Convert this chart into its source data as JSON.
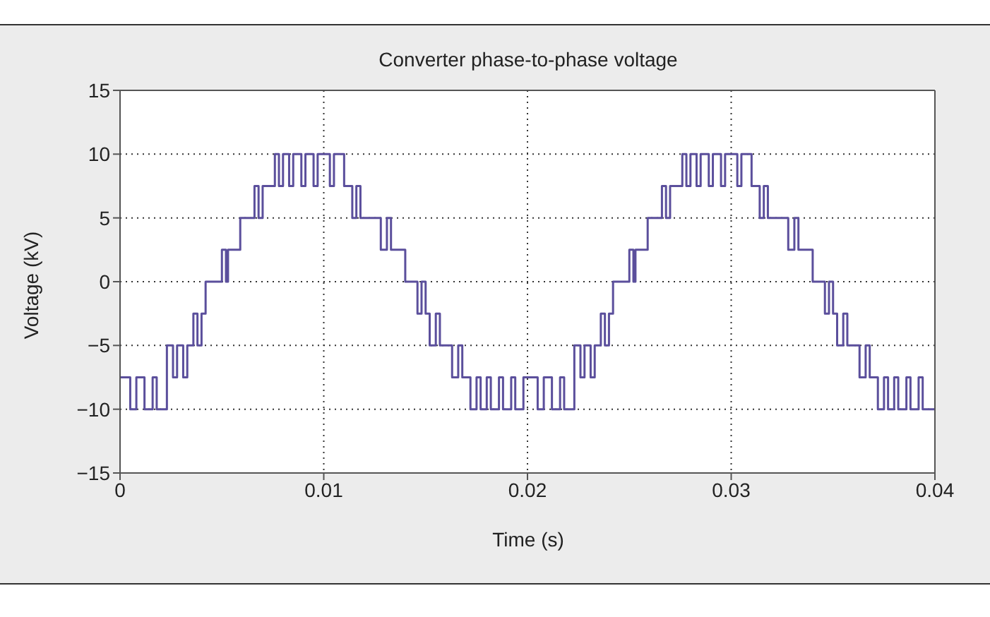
{
  "chart_data": {
    "type": "step",
    "title": "Converter phase-to-phase voltage",
    "xlabel": "Time (s)",
    "ylabel": "Voltage (kV)",
    "x": [
      0,
      0.0005,
      0.0008,
      0.0012,
      0.0016,
      0.0018,
      0.0023,
      0.0026,
      0.0028,
      0.0031,
      0.0033,
      0.0036,
      0.0038,
      0.004,
      0.0042,
      0.005,
      0.0052,
      0.0053,
      0.0059,
      0.0066,
      0.0068,
      0.007,
      0.0076,
      0.0078,
      0.008,
      0.0083,
      0.0085,
      0.0089,
      0.0091,
      0.0095,
      0.0097,
      0.0103,
      0.0105,
      0.011,
      0.0114,
      0.0116,
      0.0118,
      0.0128,
      0.0131,
      0.0133,
      0.014,
      0.0146,
      0.0148,
      0.015,
      0.0152,
      0.0155,
      0.0157,
      0.0163,
      0.0166,
      0.0168,
      0.0172,
      0.0175,
      0.0177,
      0.018,
      0.0182,
      0.0186,
      0.0188,
      0.0192,
      0.0194,
      0.0198,
      0.02,
      0.0205,
      0.0208,
      0.0212,
      0.0216,
      0.0218,
      0.0223,
      0.0226,
      0.0228,
      0.0231,
      0.0233,
      0.0236,
      0.0238,
      0.024,
      0.0242,
      0.025,
      0.0252,
      0.0253,
      0.0259,
      0.0266,
      0.0268,
      0.027,
      0.0276,
      0.0278,
      0.028,
      0.0283,
      0.0285,
      0.0289,
      0.0291,
      0.0295,
      0.0297,
      0.0303,
      0.0305,
      0.031,
      0.0314,
      0.0316,
      0.0318,
      0.0328,
      0.0331,
      0.0333,
      0.034,
      0.0346,
      0.0348,
      0.035,
      0.0352,
      0.0355,
      0.0357,
      0.0363,
      0.0366,
      0.0368,
      0.0372,
      0.0375,
      0.0377,
      0.038,
      0.0382,
      0.0386,
      0.0388,
      0.0392,
      0.0394,
      0.0398,
      0.04
    ],
    "values": [
      -7.5,
      -10,
      -7.5,
      -10,
      -7.5,
      -10,
      -5,
      -7.5,
      -5,
      -7.5,
      -5,
      -2.5,
      -5,
      -2.5,
      0,
      2.5,
      0,
      2.5,
      5,
      7.5,
      5,
      7.5,
      10,
      7.5,
      10,
      7.5,
      10,
      7.5,
      10,
      7.5,
      10,
      7.5,
      10,
      7.5,
      5,
      7.5,
      5,
      2.5,
      5,
      2.5,
      0,
      -2.5,
      0,
      -2.5,
      -5,
      -2.5,
      -5,
      -7.5,
      -5,
      -7.5,
      -10,
      -7.5,
      -10,
      -7.5,
      -10,
      -7.5,
      -10,
      -7.5,
      -10,
      -7.5,
      -7.5,
      -10,
      -7.5,
      -10,
      -7.5,
      -10,
      -5,
      -7.5,
      -5,
      -7.5,
      -5,
      -2.5,
      -5,
      -2.5,
      0,
      2.5,
      0,
      2.5,
      5,
      7.5,
      5,
      7.5,
      10,
      7.5,
      10,
      7.5,
      10,
      7.5,
      10,
      7.5,
      10,
      7.5,
      10,
      7.5,
      5,
      7.5,
      5,
      2.5,
      5,
      2.5,
      0,
      -2.5,
      0,
      -2.5,
      -5,
      -2.5,
      -5,
      -7.5,
      -5,
      -7.5,
      -10,
      -7.5,
      -10,
      -7.5,
      -10,
      -7.5,
      -10,
      -7.5,
      -10,
      -10,
      -10
    ],
    "color": "#5b4f9c",
    "xlim": [
      0,
      0.04
    ],
    "xticks": [
      0,
      0.01,
      0.02,
      0.03,
      0.04
    ],
    "ylim": [
      -15,
      15
    ],
    "yticks": [
      -15,
      -10,
      -5,
      0,
      5,
      10,
      15
    ],
    "grid": true,
    "marker": "none",
    "line_style": "solid"
  }
}
